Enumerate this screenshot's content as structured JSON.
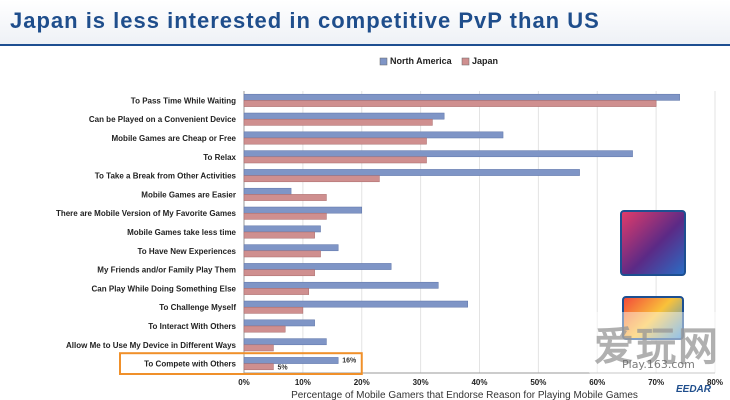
{
  "title": "Japan is less interested in competitive PvP than US",
  "watermark": {
    "main": "爱玩网",
    "sub": "Play.163.com"
  },
  "logo": "EEDAR",
  "colors": {
    "na": "#7f95c6",
    "jp": "#cf8f8f",
    "highlight": "#f0902a",
    "accent": "#1f4e8c"
  },
  "chart_data": {
    "type": "bar",
    "orientation": "horizontal",
    "title": "Japan is less interested in competitive PvP than US",
    "xlabel": "Percentage of Mobile Gamers that Endorse Reason for Playing Mobile Games",
    "ylabel": "",
    "xlim": [
      0,
      80
    ],
    "x_ticks": [
      "0%",
      "10%",
      "20%",
      "30%",
      "40%",
      "50%",
      "60%",
      "70%",
      "80%"
    ],
    "legend_position": "top",
    "categories": [
      "To Pass Time While Waiting",
      "Can be Played on a Convenient Device",
      "Mobile Games are Cheap or Free",
      "To Relax",
      "To Take a Break from Other Activities",
      "Mobile Games are Easier",
      "There are Mobile Version of My Favorite Games",
      "Mobile Games take less time",
      "To Have New Experiences",
      "My Friends and/or Family Play Them",
      "Can Play While Doing Something Else",
      "To Challenge Myself",
      "To Interact With Others",
      "Allow Me to Use My Device in Different Ways",
      "To Compete with Others"
    ],
    "series": [
      {
        "name": "North America",
        "values": [
          74,
          34,
          44,
          66,
          57,
          8,
          20,
          13,
          16,
          25,
          33,
          38,
          12,
          14,
          16
        ]
      },
      {
        "name": "Japan",
        "values": [
          70,
          32,
          31,
          31,
          23,
          14,
          14,
          12,
          13,
          12,
          11,
          10,
          7,
          5,
          5
        ]
      }
    ],
    "highlight_category": "To Compete with Others",
    "data_labels": [
      {
        "category": "To Compete with Others",
        "series": "North America",
        "text": "16%"
      },
      {
        "category": "To Compete with Others",
        "series": "Japan",
        "text": "5%"
      }
    ]
  }
}
